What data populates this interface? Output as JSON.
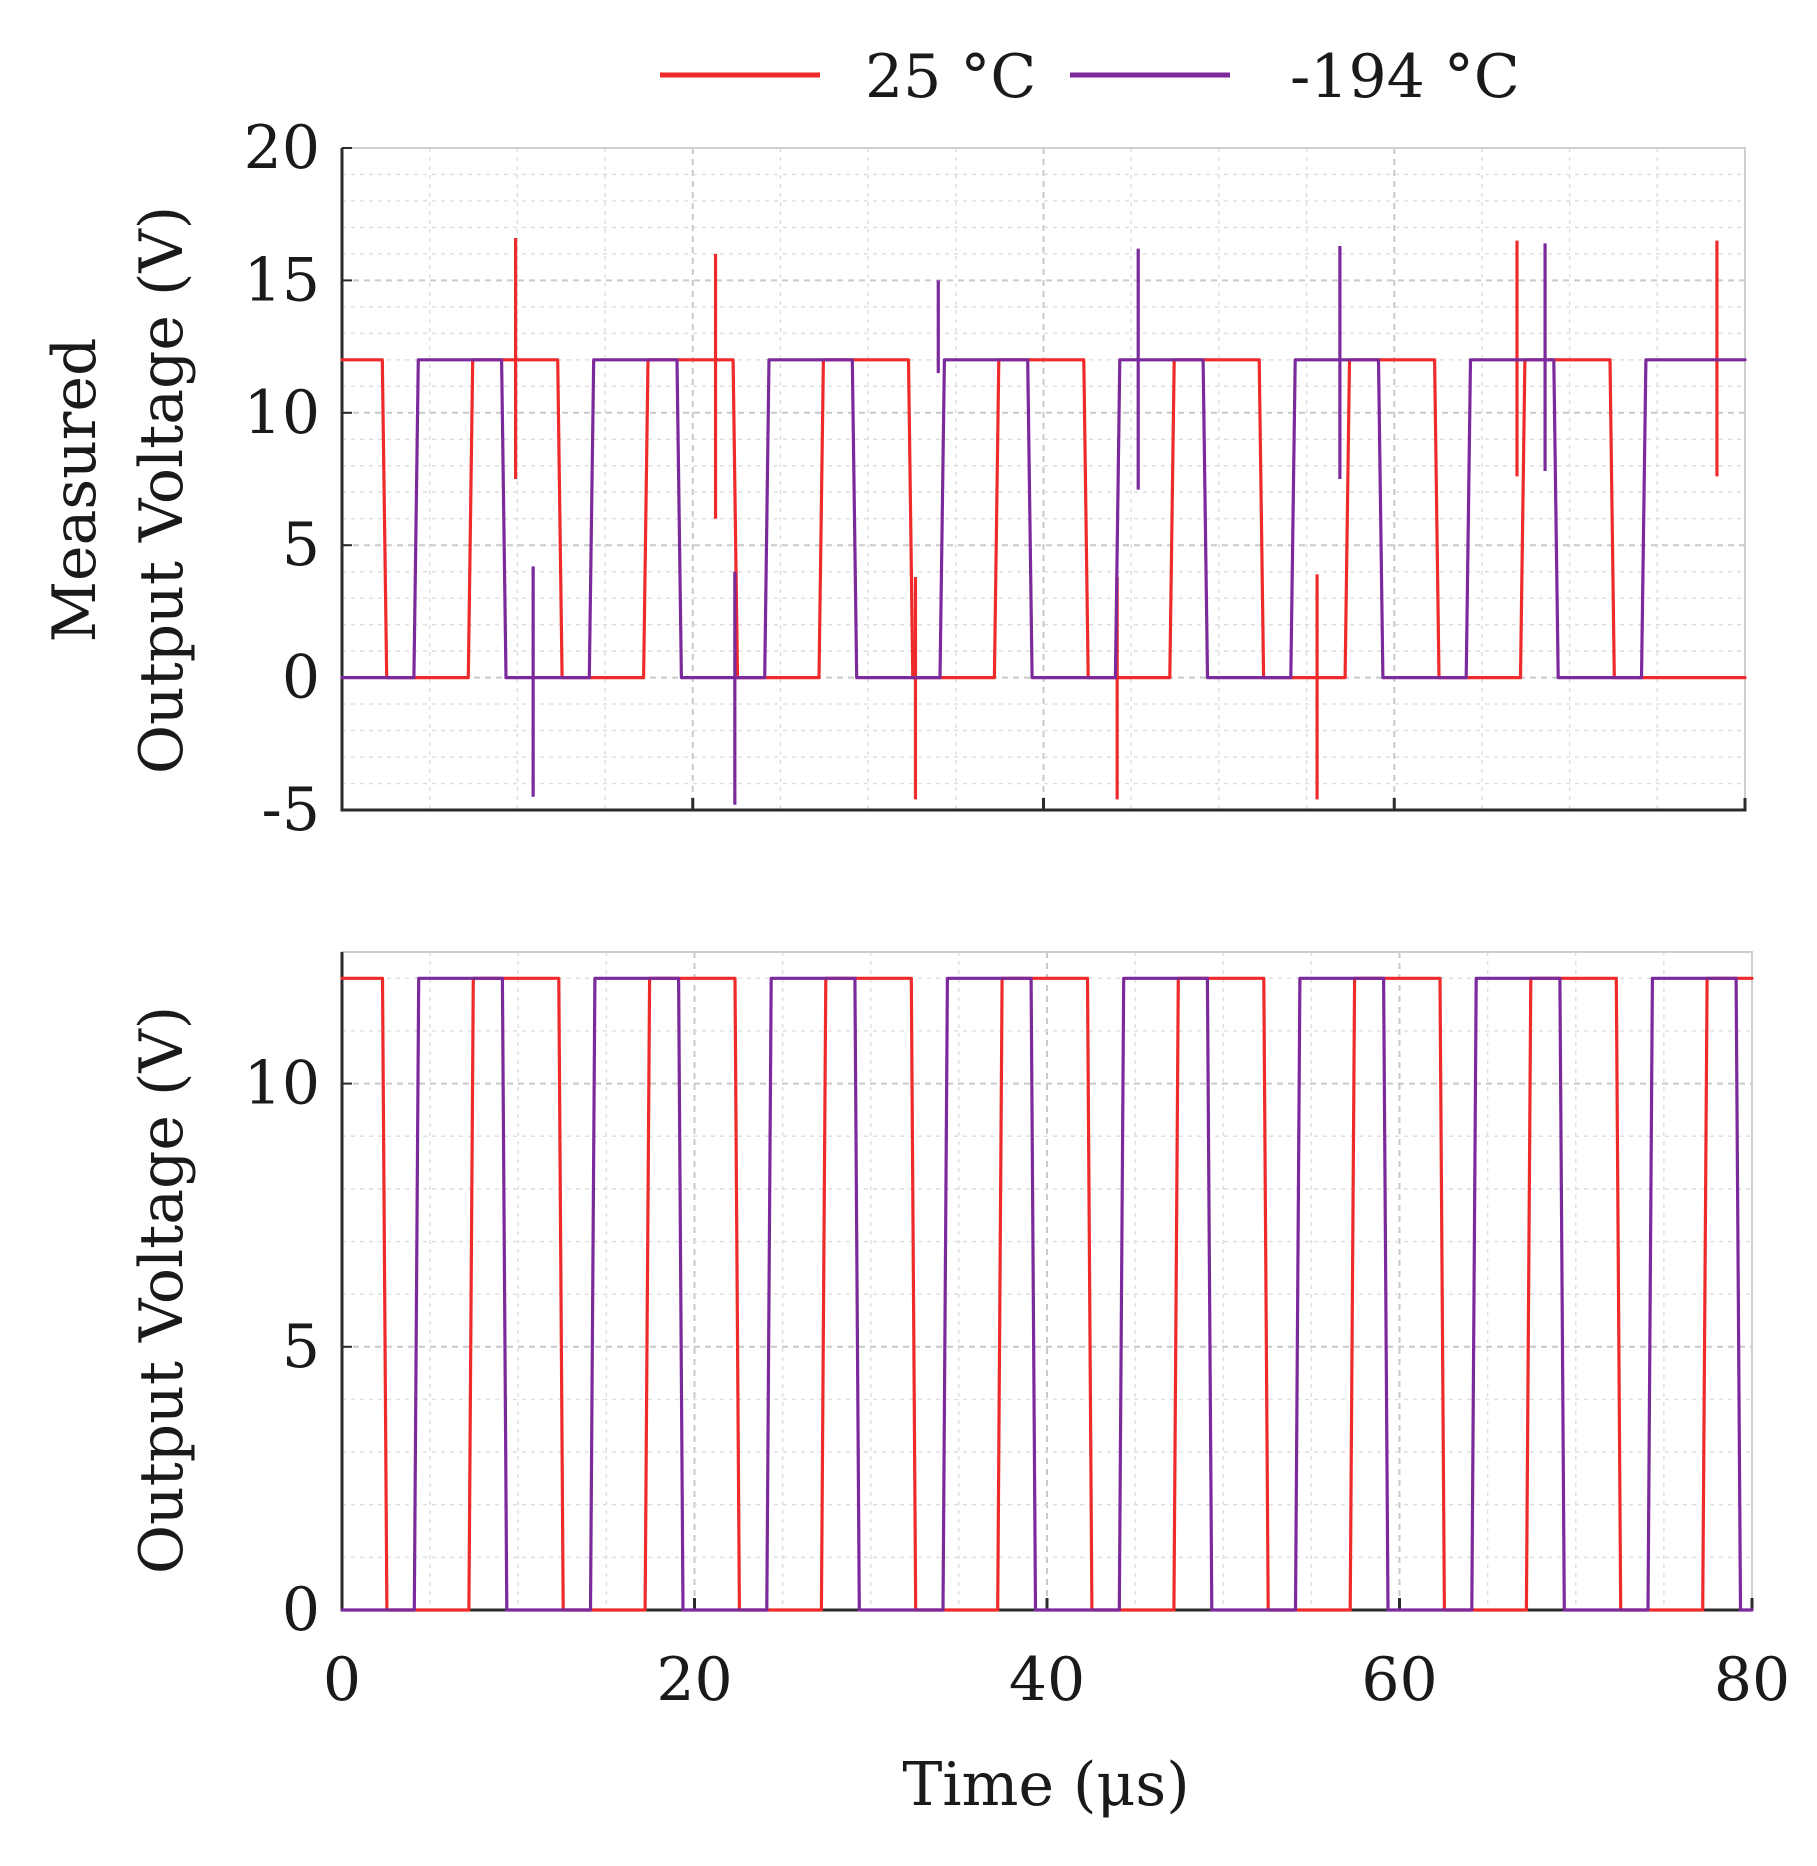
{
  "legend": {
    "entries": [
      {
        "label": "25 °C",
        "color": "#ee2a2a"
      },
      {
        "label": "-194 °C",
        "color": "#7b2a9c"
      }
    ]
  },
  "chart_data": [
    {
      "type": "line",
      "panel": "top",
      "title": "",
      "ylabel_line1": "Measured",
      "ylabel_line2": "Output Voltage (V)",
      "xlabel": "",
      "xlim": [
        0,
        80
      ],
      "ylim": [
        -5,
        20
      ],
      "x_ticks": [
        0,
        20,
        40,
        60,
        80
      ],
      "y_ticks": [
        -5,
        0,
        5,
        10,
        15,
        20
      ],
      "y_tick_labels": [
        "-5",
        "0",
        "5",
        "10",
        "15",
        "20"
      ],
      "grid": true,
      "high_level": 12,
      "low_level": 0,
      "series": [
        {
          "name": "25 °C",
          "color": "#ee2a2a",
          "rising_edges": [
            7.2,
            17.2,
            27.2,
            37.2,
            47.2,
            57.2,
            67.2
          ],
          "falling_edges": [
            2.3,
            12.3,
            22.3,
            32.3,
            42.3,
            52.3,
            62.3,
            72.3
          ],
          "spikes": [
            {
              "x": 9.9,
              "max": 16.6,
              "min": 7.5
            },
            {
              "x": 21.3,
              "max": 16.0,
              "min": 6.0
            },
            {
              "x": 32.7,
              "max": 3.8,
              "min": -4.6
            },
            {
              "x": 44.2,
              "max": 3.8,
              "min": -4.6
            },
            {
              "x": 55.6,
              "max": 3.9,
              "min": -4.6
            },
            {
              "x": 67.0,
              "max": 16.5,
              "min": 7.6
            },
            {
              "x": 78.4,
              "max": 16.5,
              "min": 7.6
            }
          ]
        },
        {
          "name": "-194 °C",
          "color": "#7b2a9c",
          "rising_edges": [
            4.1,
            14.1,
            24.1,
            34.1,
            44.1,
            54.1,
            64.1,
            74.1
          ],
          "falling_edges": [
            9.1,
            19.1,
            29.1,
            39.1,
            49.1,
            59.1,
            69.1
          ],
          "spikes": [
            {
              "x": 10.9,
              "max": 4.2,
              "min": -4.5
            },
            {
              "x": 22.4,
              "max": 4.0,
              "min": -4.8
            },
            {
              "x": 34.0,
              "max": 15.0,
              "min": 11.5
            },
            {
              "x": 45.4,
              "max": 16.2,
              "min": 7.1
            },
            {
              "x": 56.9,
              "max": 16.3,
              "min": 7.5
            },
            {
              "x": 68.6,
              "max": 16.4,
              "min": 7.8
            }
          ]
        }
      ]
    },
    {
      "type": "line",
      "panel": "bottom",
      "title": "",
      "ylabel": "Output Voltage (V)",
      "xlabel": "Time (μs)",
      "xlim": [
        0,
        80
      ],
      "ylim": [
        0,
        12.5
      ],
      "x_ticks": [
        0,
        20,
        40,
        60,
        80
      ],
      "x_tick_labels": [
        "0",
        "20",
        "40",
        "60",
        "80"
      ],
      "y_ticks": [
        0,
        5,
        10
      ],
      "y_tick_labels": [
        "0",
        "5",
        "10"
      ],
      "grid": true,
      "high_level": 12,
      "low_level": 0,
      "series": [
        {
          "name": "25 °C",
          "color": "#ee2a2a",
          "rising_edges": [
            7.2,
            17.2,
            27.2,
            37.2,
            47.2,
            57.2,
            67.2,
            77.2
          ],
          "falling_edges": [
            2.3,
            12.3,
            22.3,
            32.3,
            42.3,
            52.3,
            62.3,
            72.3
          ]
        },
        {
          "name": "-194 °C",
          "color": "#7b2a9c",
          "rising_edges": [
            4.1,
            14.1,
            24.1,
            34.1,
            44.1,
            54.1,
            64.1,
            74.1
          ],
          "falling_edges": [
            9.1,
            19.1,
            29.1,
            39.1,
            49.1,
            59.1,
            69.1,
            79.1
          ]
        }
      ]
    }
  ]
}
